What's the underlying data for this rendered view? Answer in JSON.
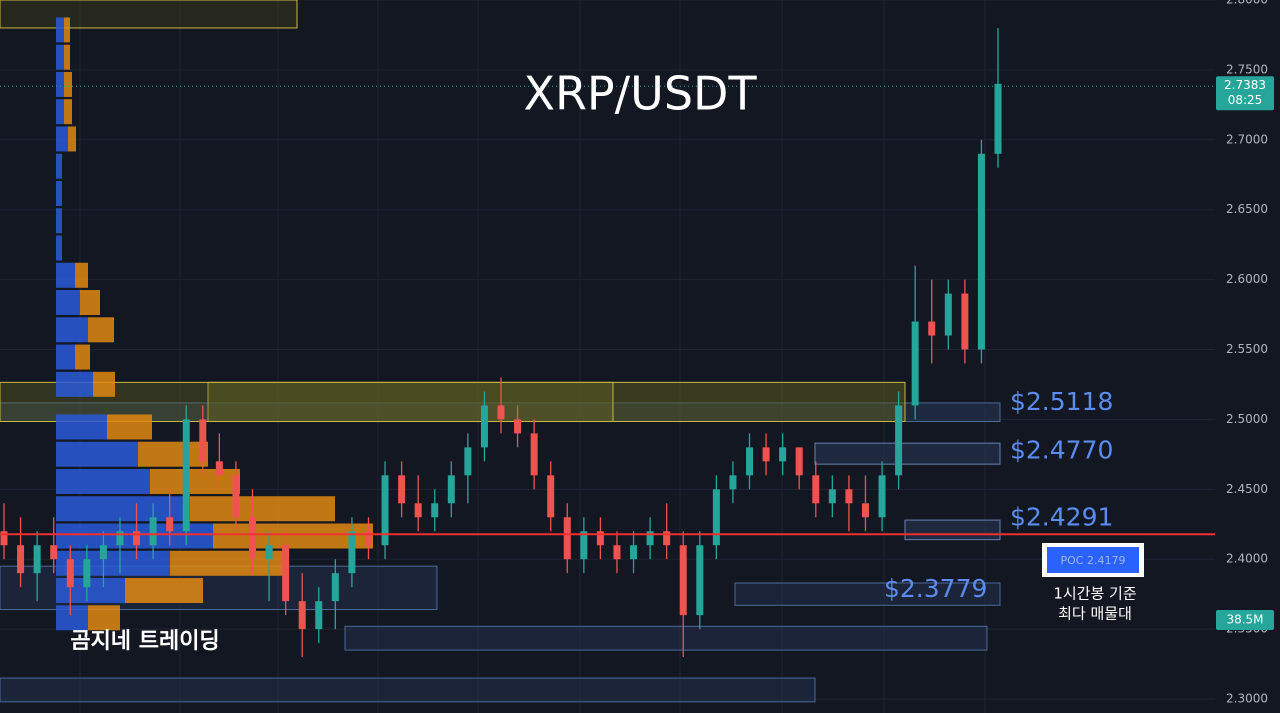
{
  "chart_data": {
    "type": "candlestick",
    "title": "XRP/USDT",
    "watermark": "곰지네 트레이딩",
    "ylim": [
      2.29,
      2.8
    ],
    "yticks": [
      {
        "value": 2.3,
        "label": "2.3000"
      },
      {
        "value": 2.35,
        "label": "2.3500"
      },
      {
        "value": 2.4,
        "label": "2.4000"
      },
      {
        "value": 2.45,
        "label": "2.4500"
      },
      {
        "value": 2.5,
        "label": "2.5000"
      },
      {
        "value": 2.55,
        "label": "2.5500"
      },
      {
        "value": 2.6,
        "label": "2.6000"
      },
      {
        "value": 2.65,
        "label": "2.6500"
      },
      {
        "value": 2.7,
        "label": "2.7000"
      },
      {
        "value": 2.75,
        "label": "2.7500"
      },
      {
        "value": 2.8,
        "label": "2.8000"
      }
    ],
    "grid": true,
    "up_color": "#26a69a",
    "down_color": "#ef5350",
    "ohlc": [
      [
        2.42,
        2.44,
        2.4,
        2.41
      ],
      [
        2.41,
        2.43,
        2.38,
        2.39
      ],
      [
        2.39,
        2.42,
        2.37,
        2.41
      ],
      [
        2.41,
        2.43,
        2.39,
        2.4
      ],
      [
        2.4,
        2.41,
        2.36,
        2.38
      ],
      [
        2.38,
        2.41,
        2.37,
        2.4
      ],
      [
        2.4,
        2.42,
        2.38,
        2.41
      ],
      [
        2.41,
        2.43,
        2.39,
        2.42
      ],
      [
        2.42,
        2.44,
        2.4,
        2.41
      ],
      [
        2.41,
        2.44,
        2.4,
        2.43
      ],
      [
        2.43,
        2.45,
        2.41,
        2.42
      ],
      [
        2.42,
        2.51,
        2.41,
        2.5
      ],
      [
        2.5,
        2.51,
        2.46,
        2.47
      ],
      [
        2.47,
        2.49,
        2.45,
        2.46
      ],
      [
        2.46,
        2.47,
        2.42,
        2.43
      ],
      [
        2.43,
        2.45,
        2.39,
        2.4
      ],
      [
        2.4,
        2.42,
        2.37,
        2.41
      ],
      [
        2.41,
        2.42,
        2.36,
        2.37
      ],
      [
        2.37,
        2.39,
        2.33,
        2.35
      ],
      [
        2.35,
        2.38,
        2.34,
        2.37
      ],
      [
        2.37,
        2.4,
        2.35,
        2.39
      ],
      [
        2.39,
        2.43,
        2.38,
        2.42
      ],
      [
        2.42,
        2.43,
        2.4,
        2.41
      ],
      [
        2.41,
        2.47,
        2.4,
        2.46
      ],
      [
        2.46,
        2.47,
        2.43,
        2.44
      ],
      [
        2.44,
        2.46,
        2.42,
        2.43
      ],
      [
        2.43,
        2.45,
        2.42,
        2.44
      ],
      [
        2.44,
        2.47,
        2.43,
        2.46
      ],
      [
        2.46,
        2.49,
        2.44,
        2.48
      ],
      [
        2.48,
        2.52,
        2.47,
        2.51
      ],
      [
        2.51,
        2.53,
        2.49,
        2.5
      ],
      [
        2.5,
        2.51,
        2.48,
        2.49
      ],
      [
        2.49,
        2.5,
        2.45,
        2.46
      ],
      [
        2.46,
        2.47,
        2.42,
        2.43
      ],
      [
        2.43,
        2.44,
        2.39,
        2.4
      ],
      [
        2.4,
        2.43,
        2.39,
        2.42
      ],
      [
        2.42,
        2.43,
        2.4,
        2.41
      ],
      [
        2.41,
        2.42,
        2.39,
        2.4
      ],
      [
        2.4,
        2.42,
        2.39,
        2.41
      ],
      [
        2.41,
        2.43,
        2.4,
        2.42
      ],
      [
        2.42,
        2.44,
        2.4,
        2.41
      ],
      [
        2.41,
        2.42,
        2.33,
        2.36
      ],
      [
        2.36,
        2.42,
        2.35,
        2.41
      ],
      [
        2.41,
        2.46,
        2.4,
        2.45
      ],
      [
        2.45,
        2.47,
        2.44,
        2.46
      ],
      [
        2.46,
        2.49,
        2.45,
        2.48
      ],
      [
        2.48,
        2.49,
        2.46,
        2.47
      ],
      [
        2.47,
        2.49,
        2.46,
        2.48
      ],
      [
        2.48,
        2.48,
        2.45,
        2.46
      ],
      [
        2.46,
        2.47,
        2.43,
        2.44
      ],
      [
        2.44,
        2.46,
        2.43,
        2.45
      ],
      [
        2.45,
        2.46,
        2.42,
        2.44
      ],
      [
        2.44,
        2.46,
        2.42,
        2.43
      ],
      [
        2.43,
        2.47,
        2.42,
        2.46
      ],
      [
        2.46,
        2.52,
        2.45,
        2.51
      ],
      [
        2.51,
        2.61,
        2.5,
        2.57
      ],
      [
        2.57,
        2.6,
        2.54,
        2.56
      ],
      [
        2.56,
        2.6,
        2.55,
        2.59
      ],
      [
        2.59,
        2.6,
        2.54,
        2.55
      ],
      [
        2.55,
        2.7,
        2.54,
        2.69
      ],
      [
        2.69,
        2.78,
        2.68,
        2.74
      ]
    ],
    "volume_profile": {
      "buy_color": "#2a5ad8",
      "sell_color": "#e08a12",
      "rows": [
        [
          2.7786,
          8,
          6
        ],
        [
          2.7591,
          8,
          6
        ],
        [
          2.7396,
          8,
          8
        ],
        [
          2.7201,
          8,
          8
        ],
        [
          2.7006,
          12,
          8
        ],
        [
          2.6811,
          6,
          0
        ],
        [
          2.6616,
          6,
          0
        ],
        [
          2.6421,
          6,
          0
        ],
        [
          2.6226,
          6,
          0
        ],
        [
          2.6031,
          19,
          13
        ],
        [
          2.5836,
          24,
          20
        ],
        [
          2.5641,
          32,
          26
        ],
        [
          2.5446,
          19,
          15
        ],
        [
          2.5251,
          37,
          22
        ],
        [
          2.4946,
          51,
          45
        ],
        [
          2.4751,
          82,
          70
        ],
        [
          2.4556,
          94,
          90
        ],
        [
          2.4361,
          134,
          145
        ],
        [
          2.4166,
          157,
          160
        ],
        [
          2.3971,
          114,
          115
        ],
        [
          2.3776,
          69,
          78
        ],
        [
          2.3581,
          32,
          32
        ]
      ]
    },
    "zones": [
      [
        2.5118,
        2.4985
      ],
      [
        2.5265,
        2.4985
      ],
      [
        2.483,
        2.468
      ],
      [
        2.428,
        2.414
      ],
      [
        2.395,
        2.364
      ],
      [
        2.383,
        2.367
      ],
      [
        2.352,
        2.335
      ],
      [
        2.315,
        2.298
      ],
      [
        2.8,
        2.78
      ]
    ],
    "levels": [
      2.5118,
      2.477,
      2.4291,
      2.3779
    ],
    "level_labels": [
      "$2.5118",
      "$2.4770",
      "$2.4291",
      "$2.3779"
    ],
    "poc": 2.4179,
    "poc_label": "POC 2.4179",
    "poc_note": [
      "1시간봉 기준",
      "최다 매물대"
    ],
    "last_price": 2.7383,
    "last_price_label": "2.7383",
    "countdown": "08:25",
    "volume_label": "38.5M"
  }
}
